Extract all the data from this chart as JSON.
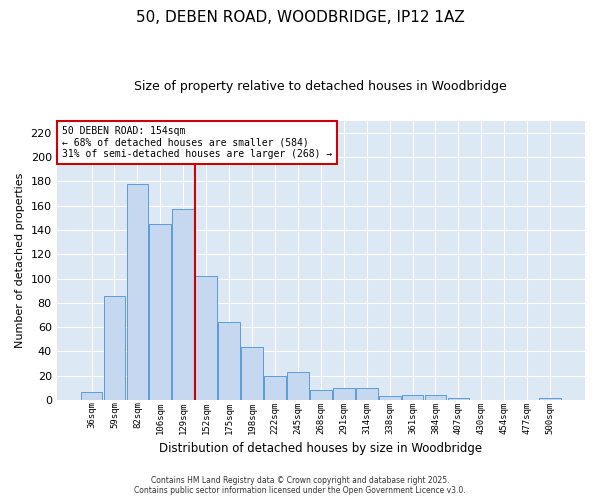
{
  "title_line1": "50, DEBEN ROAD, WOODBRIDGE, IP12 1AZ",
  "title_line2": "Size of property relative to detached houses in Woodbridge",
  "xlabel": "Distribution of detached houses by size in Woodbridge",
  "ylabel": "Number of detached properties",
  "bin_labels": [
    "36sqm",
    "59sqm",
    "82sqm",
    "106sqm",
    "129sqm",
    "152sqm",
    "175sqm",
    "198sqm",
    "222sqm",
    "245sqm",
    "268sqm",
    "291sqm",
    "314sqm",
    "338sqm",
    "361sqm",
    "384sqm",
    "407sqm",
    "430sqm",
    "454sqm",
    "477sqm",
    "500sqm"
  ],
  "bar_heights": [
    7,
    86,
    178,
    145,
    157,
    102,
    64,
    44,
    20,
    23,
    8,
    10,
    10,
    3,
    4,
    4,
    2,
    0,
    0,
    0,
    2
  ],
  "bar_color": "#c5d8f0",
  "bar_edge_color": "#5b9bd5",
  "vline_x_index": 5,
  "vline_color": "#cc0000",
  "ylim": [
    0,
    230
  ],
  "yticks": [
    0,
    20,
    40,
    60,
    80,
    100,
    120,
    140,
    160,
    180,
    200,
    220
  ],
  "annotation_text": "50 DEBEN ROAD: 154sqm\n← 68% of detached houses are smaller (584)\n31% of semi-detached houses are larger (268) →",
  "annotation_box_facecolor": "#ffffff",
  "annotation_box_edgecolor": "#cc0000",
  "footer_line1": "Contains HM Land Registry data © Crown copyright and database right 2025.",
  "footer_line2": "Contains public sector information licensed under the Open Government Licence v3.0.",
  "fig_facecolor": "#ffffff",
  "plot_bg_color": "#dde8f5",
  "grid_color": "#ffffff",
  "title_fontsize": 11,
  "subtitle_fontsize": 9
}
